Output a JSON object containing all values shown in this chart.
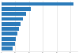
{
  "values": [
    52.0,
    21.0,
    17.5,
    15.5,
    14.0,
    12.5,
    11.5,
    10.5,
    9.5,
    8.0
  ],
  "bar_color": "#2b7bba",
  "background_color": "#ffffff",
  "grid_color": "#d9d9d9",
  "xlim": [
    0,
    55
  ],
  "figsize": [
    1.0,
    0.71
  ],
  "dpi": 100
}
